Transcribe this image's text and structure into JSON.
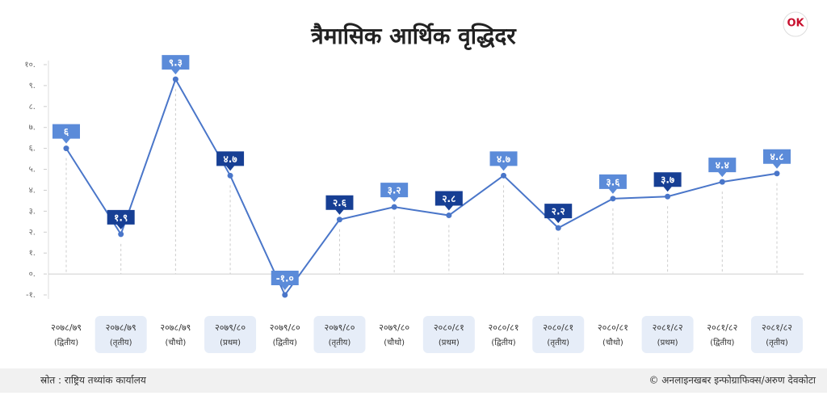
{
  "chart_data": {
    "type": "line",
    "title": "त्रैमासिक आर्थिक वृद्धिदर",
    "categories": [
      [
        "२०७८/७९",
        "(द्वितीय)"
      ],
      [
        "२०७८/७९",
        "(तृतीय)"
      ],
      [
        "२०७८/७९",
        "(चौथो)"
      ],
      [
        "२०७९/८०",
        "(प्रथम)"
      ],
      [
        "२०७९/८०",
        "(द्वितीय)"
      ],
      [
        "२०७९/८०",
        "(तृतीय)"
      ],
      [
        "२०७९/८०",
        "(चौथो)"
      ],
      [
        "२०८०/८१",
        "(प्रथम)"
      ],
      [
        "२०८०/८१",
        "(द्वितीय)"
      ],
      [
        "२०८०/८१",
        "(तृतीय)"
      ],
      [
        "२०८०/८१",
        "(चौथो)"
      ],
      [
        "२०८१/८२",
        "(प्रथम)"
      ],
      [
        "२०८१/८२",
        "(द्वितीय)"
      ],
      [
        "२०८१/८२",
        "(तृतीय)"
      ]
    ],
    "values": [
      6,
      1.9,
      9.3,
      4.7,
      -1.0,
      2.6,
      3.2,
      2.8,
      4.7,
      2.2,
      3.6,
      3.7,
      4.4,
      4.8
    ],
    "value_labels": [
      "६",
      "१.९",
      "९.३",
      "४.७",
      "-१.०",
      "२.६",
      "३.२",
      "२.८",
      "४.७",
      "२.२",
      "३.६",
      "३.७",
      "४.४",
      "४.८"
    ],
    "value_label_colors": [
      "#5b8bd9",
      "#173f94",
      "#5b8bd9",
      "#173f94",
      "#5b8bd9",
      "#173f94",
      "#5b8bd9",
      "#173f94",
      "#5b8bd9",
      "#173f94",
      "#5b8bd9",
      "#173f94",
      "#5b8bd9",
      "#5b8bd9"
    ],
    "color": "#4a76c9",
    "ylim": [
      -1,
      10
    ],
    "yticks": [
      {
        "value": -1,
        "label": "-१."
      },
      {
        "value": 0,
        "label": "०."
      },
      {
        "value": 1,
        "label": "१."
      },
      {
        "value": 2,
        "label": "२."
      },
      {
        "value": 3,
        "label": "३."
      },
      {
        "value": 4,
        "label": "४."
      },
      {
        "value": 5,
        "label": "५."
      },
      {
        "value": 6,
        "label": "६."
      },
      {
        "value": 7,
        "label": "७."
      },
      {
        "value": 8,
        "label": "८."
      },
      {
        "value": 9,
        "label": "९."
      },
      {
        "value": 10,
        "label": "१०."
      }
    ],
    "source": "स्रोत : राष्ट्रिय तथ्यांक कार्यालय",
    "credit": "© अनलाइनखबर इन्फोग्राफिक्स/अरुण देवकोटा",
    "logo": "OK"
  }
}
